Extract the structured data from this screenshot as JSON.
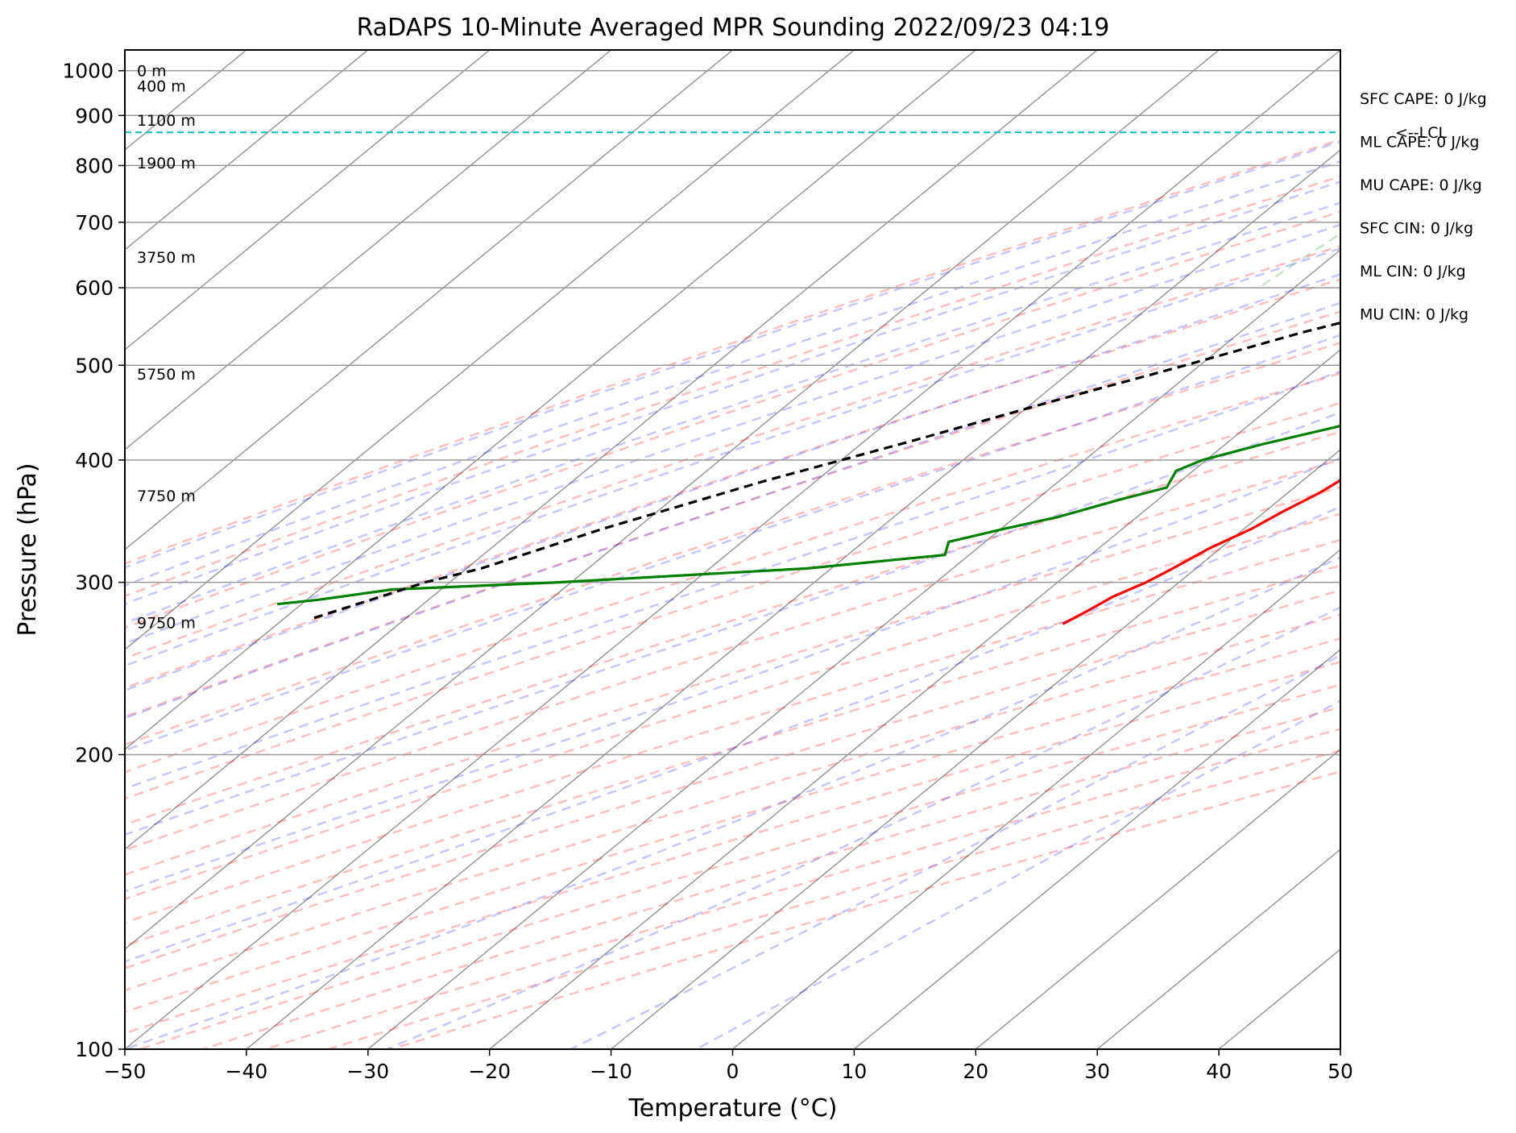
{
  "chart_data": {
    "type": "line",
    "title": "RaDAPS 10-Minute Averaged MPR Sounding 2022/09/23 04:19",
    "xlabel": "Temperature (°C)",
    "ylabel": "Pressure (hPa)",
    "xlim": [
      -50,
      50
    ],
    "ylim": [
      1050,
      100
    ],
    "y_scale": "log",
    "x_ticks": [
      -50,
      -40,
      -30,
      -20,
      -10,
      0,
      10,
      20,
      30,
      40,
      50
    ],
    "x_tick_labels": [
      "−50",
      "−40",
      "−30",
      "−20",
      "−10",
      "0",
      "10",
      "20",
      "30",
      "40",
      "50"
    ],
    "y_ticks": [
      1000,
      900,
      800,
      700,
      600,
      500,
      400,
      300,
      200,
      100
    ],
    "y_tick_labels": [
      "1000",
      "900",
      "800",
      "700",
      "600",
      "500",
      "400",
      "300",
      "200",
      "100"
    ],
    "grid": true,
    "skew": true,
    "series": [
      {
        "name": "",
        "kind": "temperature",
        "color": "#ff0000",
        "points": [
          [
            1000,
            20.5
          ],
          [
            990,
            19.7
          ],
          [
            975,
            19.5
          ],
          [
            955,
            19.0
          ],
          [
            935,
            19.5
          ],
          [
            915,
            19.7
          ],
          [
            900,
            19.8
          ],
          [
            880,
            19.5
          ],
          [
            865,
            19.8
          ],
          [
            850,
            19.5
          ],
          [
            835,
            19.7
          ],
          [
            800,
            18.7
          ],
          [
            770,
            17.6
          ],
          [
            740,
            15.9
          ],
          [
            710,
            14.2
          ],
          [
            680,
            12.2
          ],
          [
            650,
            10.6
          ],
          [
            620,
            9.2
          ],
          [
            600,
            8.4
          ],
          [
            580,
            6.2
          ],
          [
            560,
            4.8
          ],
          [
            540,
            3.9
          ],
          [
            520,
            2.0
          ],
          [
            500,
            0.4
          ],
          [
            480,
            -1.1
          ],
          [
            460,
            -2.5
          ],
          [
            445,
            -2.3
          ],
          [
            430,
            -3.4
          ],
          [
            415,
            -4.3
          ],
          [
            400,
            -5.5
          ],
          [
            385,
            -6.8
          ],
          [
            370,
            -7.4
          ],
          [
            355,
            -8.5
          ],
          [
            340,
            -9.4
          ],
          [
            325,
            -10.9
          ],
          [
            310,
            -11.9
          ],
          [
            300,
            -12.7
          ],
          [
            290,
            -14.0
          ],
          [
            280,
            -14.7
          ],
          [
            272,
            -15.4
          ]
        ]
      },
      {
        "name": "",
        "kind": "dewpoint",
        "color": "#008000",
        "points": [
          [
            1000,
            11.2
          ],
          [
            995,
            9.3
          ],
          [
            975,
            6.5
          ],
          [
            960,
            6.0
          ],
          [
            945,
            5.5
          ],
          [
            925,
            4.5
          ],
          [
            905,
            2.8
          ],
          [
            885,
            0.8
          ],
          [
            870,
            -2.5
          ],
          [
            855,
            -4.5
          ],
          [
            845,
            -4.8
          ],
          [
            835,
            -5.7
          ],
          [
            815,
            -6.5
          ],
          [
            795,
            -8.5
          ],
          [
            780,
            -10.5
          ],
          [
            770,
            -12.5
          ],
          [
            740,
            -11.7
          ],
          [
            710,
            -6.9
          ],
          [
            680,
            -6.5
          ],
          [
            655,
            -3.2
          ],
          [
            640,
            -4.2
          ],
          [
            620,
            -5.1
          ],
          [
            580,
            -5.5
          ],
          [
            555,
            -6.3
          ],
          [
            540,
            -4.3
          ],
          [
            525,
            -4.8
          ],
          [
            500,
            -7.8
          ],
          [
            480,
            -10.0
          ],
          [
            470,
            -10.6
          ],
          [
            445,
            -13.1
          ],
          [
            435,
            -12.0
          ],
          [
            415,
            -17.0
          ],
          [
            400,
            -20.3
          ],
          [
            390,
            -21.4
          ],
          [
            375,
            -20.5
          ],
          [
            365,
            -23.0
          ],
          [
            350,
            -26.5
          ],
          [
            340,
            -29.8
          ],
          [
            330,
            -33.0
          ],
          [
            320,
            -32.0
          ],
          [
            310,
            -42.0
          ],
          [
            300,
            -61.0
          ],
          [
            295,
            -74.0
          ],
          [
            288,
            -79.0
          ],
          [
            285,
            -82.0
          ]
        ]
      },
      {
        "name": "",
        "kind": "parcel",
        "color": "#000000",
        "points": [
          [
            1000,
            20.5
          ],
          [
            960,
            16.9
          ],
          [
            920,
            13.3
          ],
          [
            880,
            9.6
          ],
          [
            865,
            8.1
          ],
          [
            830,
            5.4
          ],
          [
            800,
            3.0
          ],
          [
            770,
            0.3
          ],
          [
            740,
            -2.5
          ],
          [
            700,
            -6.4
          ],
          [
            660,
            -10.4
          ],
          [
            620,
            -15.3
          ],
          [
            580,
            -19.4
          ],
          [
            560,
            -21.4
          ],
          [
            540,
            -24.9
          ],
          [
            500,
            -31.2
          ],
          [
            460,
            -38.4
          ],
          [
            420,
            -45.8
          ],
          [
            380,
            -54.4
          ],
          [
            340,
            -62.8
          ],
          [
            310,
            -68.8
          ],
          [
            300,
            -72.0
          ],
          [
            275,
            -77.8
          ]
        ]
      }
    ],
    "annotations": {
      "height_labels": [
        {
          "p": 1000,
          "text": "0 m"
        },
        {
          "p": 965,
          "text": "400 m"
        },
        {
          "p": 890,
          "text": "1100 m"
        },
        {
          "p": 805,
          "text": "1900 m"
        },
        {
          "p": 645,
          "text": "3750 m"
        },
        {
          "p": 490,
          "text": "5750 m"
        },
        {
          "p": 368,
          "text": "7750 m"
        },
        {
          "p": 273,
          "text": "9750 m"
        }
      ],
      "lcl": {
        "p": 865,
        "text": "<--LCL",
        "color": "#00bfbf"
      },
      "indices": [
        "SFC CAPE: 0 J/kg",
        "ML CAPE: 0 J/kg",
        "MU CAPE: 0 J/kg",
        "SFC CIN: 0 J/kg",
        "ML CIN: 0 J/kg",
        "MU CIN: 0 J/kg"
      ]
    }
  }
}
